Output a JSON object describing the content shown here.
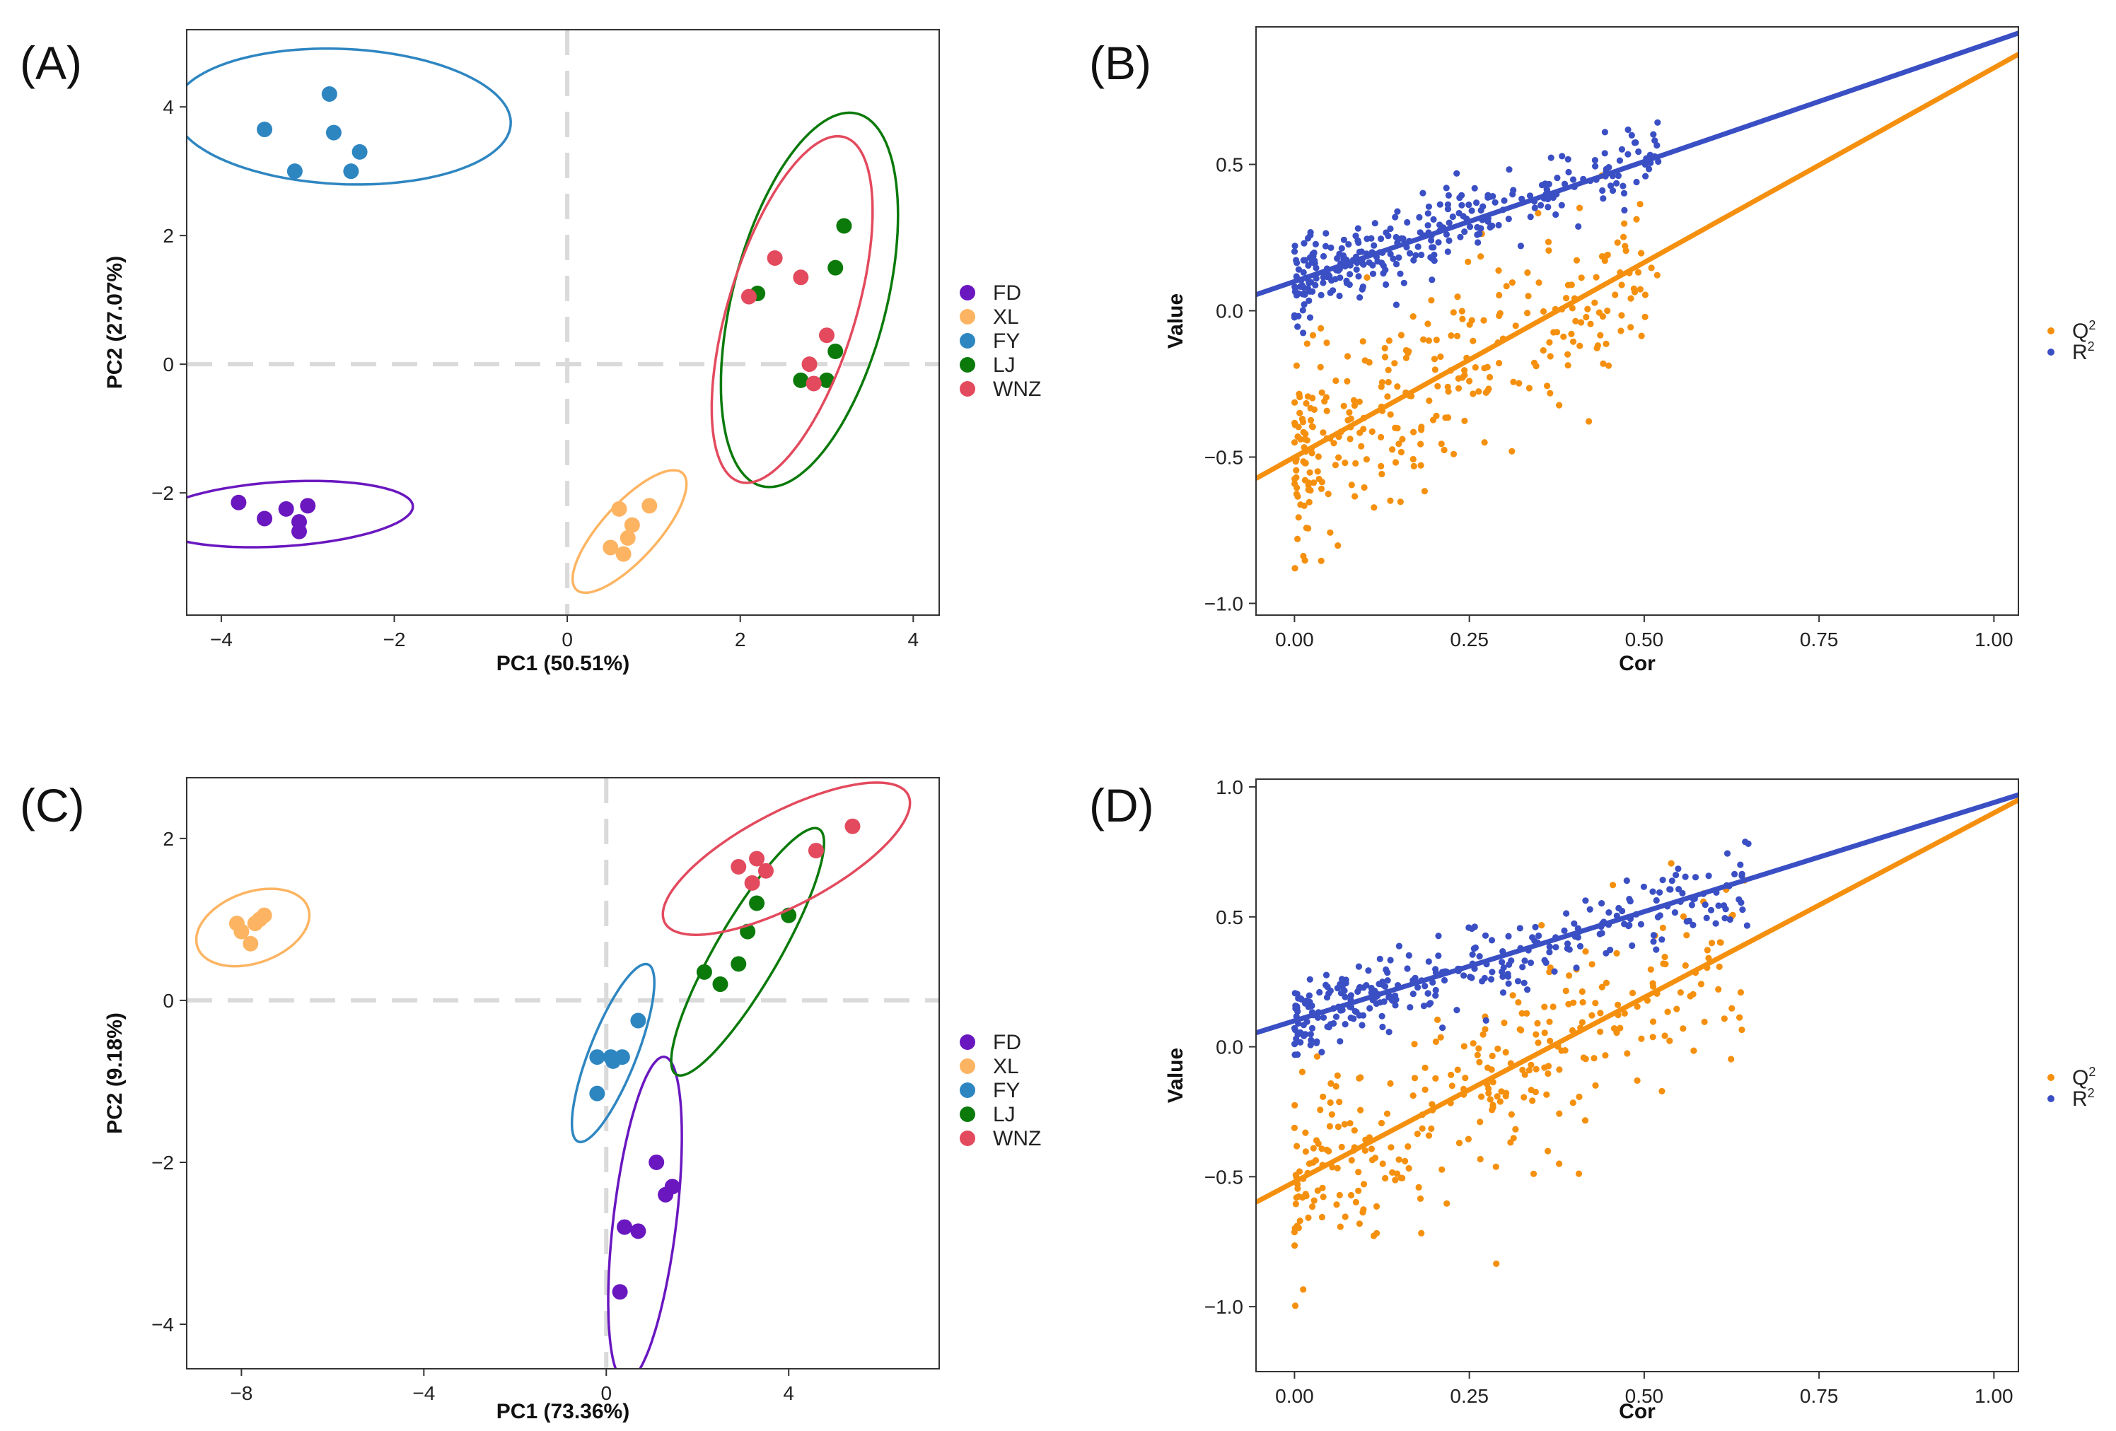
{
  "chart_data": [
    {
      "id": "A",
      "type": "scatter",
      "panel_label": "(A)",
      "title": "",
      "xlabel": "PC1 (50.51%)",
      "ylabel": "PC2 (27.07%)",
      "xlim": [
        -4.4,
        4.3
      ],
      "ylim": [
        -3.9,
        5.2
      ],
      "xticks": [
        -4,
        -2,
        0,
        2,
        4
      ],
      "xtick_labels": [
        "−4",
        "−2",
        "0",
        "2",
        "4"
      ],
      "yticks": [
        -2,
        0,
        2,
        4
      ],
      "ytick_labels": [
        "−2",
        "0",
        "2",
        "4"
      ],
      "zero_lines": true,
      "legend_position": "right",
      "series": [
        {
          "name": "FD",
          "color": "#6A17C0",
          "points": [
            [
              -3.8,
              -2.15
            ],
            [
              -3.5,
              -2.4
            ],
            [
              -3.25,
              -2.25
            ],
            [
              -3.1,
              -2.45
            ],
            [
              -3.1,
              -2.6
            ],
            [
              -3.0,
              -2.2
            ]
          ],
          "ellipse": {
            "cx": -3.3,
            "cy": -2.33,
            "rx": 1.52,
            "ry": 0.5,
            "angle": 5
          }
        },
        {
          "name": "XL",
          "color": "#FDB462",
          "points": [
            [
              0.95,
              -2.2
            ],
            [
              0.6,
              -2.25
            ],
            [
              0.75,
              -2.5
            ],
            [
              0.7,
              -2.7
            ],
            [
              0.5,
              -2.85
            ],
            [
              0.65,
              -2.95
            ]
          ],
          "ellipse": {
            "cx": 0.72,
            "cy": -2.6,
            "rx": 1.1,
            "ry": 0.36,
            "angle": 58
          }
        },
        {
          "name": "FY",
          "color": "#2E86C1",
          "points": [
            [
              -2.75,
              4.2
            ],
            [
              -3.5,
              3.65
            ],
            [
              -2.7,
              3.6
            ],
            [
              -2.4,
              3.3
            ],
            [
              -3.15,
              3.0
            ],
            [
              -2.5,
              3.0
            ]
          ],
          "ellipse": {
            "cx": -2.6,
            "cy": 3.85,
            "rx": 1.95,
            "ry": 1.05,
            "angle": -4
          }
        },
        {
          "name": "LJ",
          "color": "#0B7A0B",
          "points": [
            [
              3.2,
              2.15
            ],
            [
              3.1,
              1.5
            ],
            [
              2.2,
              1.1
            ],
            [
              3.1,
              0.2
            ],
            [
              2.7,
              -0.25
            ],
            [
              3.0,
              -0.25
            ]
          ],
          "ellipse": {
            "cx": 2.8,
            "cy": 1.0,
            "rx": 2.95,
            "ry": 0.9,
            "angle": 80
          }
        },
        {
          "name": "WNZ",
          "color": "#E34A5E",
          "points": [
            [
              2.4,
              1.65
            ],
            [
              2.7,
              1.35
            ],
            [
              2.1,
              1.05
            ],
            [
              3.0,
              0.45
            ],
            [
              2.8,
              0.0
            ],
            [
              2.85,
              -0.3
            ]
          ],
          "ellipse": {
            "cx": 2.6,
            "cy": 0.85,
            "rx": 2.75,
            "ry": 0.75,
            "angle": 78
          }
        }
      ]
    },
    {
      "id": "B",
      "type": "scatter",
      "panel_label": "(B)",
      "title": "",
      "xlabel": "Cor",
      "ylabel": "Value",
      "xlim": [
        -0.055,
        1.035
      ],
      "ylim": [
        -1.04,
        0.97
      ],
      "xticks": [
        0,
        0.25,
        0.5,
        0.75,
        1.0
      ],
      "xtick_labels": [
        "0.00",
        "0.25",
        "0.50",
        "0.75",
        "1.00"
      ],
      "yticks": [
        -1.0,
        -0.5,
        0.0,
        0.5
      ],
      "ytick_labels": [
        "−1.0",
        "−0.5",
        "0.0",
        "0.5"
      ],
      "legend_position": "right",
      "legend": [
        {
          "label": "Q",
          "sup": "2",
          "color": "#F5900F"
        },
        {
          "label": "R",
          "sup": "2",
          "color": "#3A4FC4"
        }
      ],
      "series": [
        {
          "name": "Q2",
          "color": "#F5900F",
          "n_points": 300,
          "x_range": [
            0,
            0.52
          ],
          "fit": {
            "intercept": -0.5,
            "slope": 1.33,
            "x0": -0.055,
            "x1": 1.035
          },
          "scatter_sd": 0.17
        },
        {
          "name": "R2",
          "color": "#3A4FC4",
          "n_points": 300,
          "x_range": [
            0,
            0.52
          ],
          "fit": {
            "intercept": 0.1,
            "slope": 0.82,
            "x0": -0.055,
            "x1": 1.035
          },
          "scatter_sd": 0.065
        }
      ]
    },
    {
      "id": "C",
      "type": "scatter",
      "panel_label": "(C)",
      "title": "",
      "xlabel": "PC1 (73.36%)",
      "ylabel": "PC2 (9.18%)",
      "xlim": [
        -9.2,
        7.3
      ],
      "ylim": [
        -4.55,
        2.75
      ],
      "xticks": [
        -8,
        -4,
        0,
        4
      ],
      "xtick_labels": [
        "−8",
        "−4",
        "0",
        "4"
      ],
      "yticks": [
        -4,
        -2,
        0,
        2
      ],
      "ytick_labels": [
        "−4",
        "−2",
        "0",
        "2"
      ],
      "zero_lines": true,
      "legend_position": "right",
      "series": [
        {
          "name": "FD",
          "color": "#6A17C0",
          "points": [
            [
              1.1,
              -2.0
            ],
            [
              1.45,
              -2.3
            ],
            [
              1.3,
              -2.4
            ],
            [
              0.4,
              -2.8
            ],
            [
              0.7,
              -2.85
            ],
            [
              0.3,
              -3.6
            ]
          ],
          "ellipse": {
            "cx": 0.85,
            "cy": -2.7,
            "rx": 2.05,
            "ry": 0.68,
            "angle": 77
          }
        },
        {
          "name": "XL",
          "color": "#FDB462",
          "points": [
            [
              -7.5,
              1.05
            ],
            [
              -7.6,
              1.0
            ],
            [
              -8.1,
              0.95
            ],
            [
              -8.0,
              0.85
            ],
            [
              -7.7,
              0.95
            ],
            [
              -7.8,
              0.7
            ]
          ],
          "ellipse": {
            "cx": -7.75,
            "cy": 0.9,
            "rx": 1.25,
            "ry": 0.45,
            "angle": 8
          }
        },
        {
          "name": "FY",
          "color": "#2E86C1",
          "points": [
            [
              0.7,
              -0.25
            ],
            [
              -0.2,
              -0.7
            ],
            [
              0.1,
              -0.7
            ],
            [
              0.35,
              -0.7
            ],
            [
              0.15,
              -0.75
            ],
            [
              -0.2,
              -1.15
            ]
          ],
          "ellipse": {
            "cx": 0.15,
            "cy": -0.65,
            "rx": 1.35,
            "ry": 0.45,
            "angle": 52
          }
        },
        {
          "name": "LJ",
          "color": "#0B7A0B",
          "points": [
            [
              3.3,
              1.2
            ],
            [
              4.0,
              1.05
            ],
            [
              3.1,
              0.85
            ],
            [
              2.15,
              0.35
            ],
            [
              2.9,
              0.45
            ],
            [
              2.5,
              0.2
            ]
          ],
          "ellipse": {
            "cx": 3.1,
            "cy": 0.6,
            "rx": 2.2,
            "ry": 0.55,
            "angle": 42
          }
        },
        {
          "name": "WNZ",
          "color": "#E34A5E",
          "points": [
            [
              5.4,
              2.15
            ],
            [
              4.6,
              1.85
            ],
            [
              3.3,
              1.75
            ],
            [
              2.9,
              1.65
            ],
            [
              3.2,
              1.45
            ],
            [
              3.5,
              1.6
            ]
          ],
          "ellipse": {
            "cx": 3.95,
            "cy": 1.75,
            "rx": 2.8,
            "ry": 0.62,
            "angle": 15
          }
        }
      ]
    },
    {
      "id": "D",
      "type": "scatter",
      "panel_label": "(D)",
      "title": "",
      "xlabel": "Cor",
      "ylabel": "Value",
      "xlim": [
        -0.055,
        1.035
      ],
      "ylim": [
        -1.25,
        1.03
      ],
      "xticks": [
        0,
        0.25,
        0.5,
        0.75,
        1.0
      ],
      "xtick_labels": [
        "0.00",
        "0.25",
        "0.50",
        "0.75",
        "1.00"
      ],
      "yticks": [
        -1.0,
        -0.5,
        0.0,
        0.5,
        1.0
      ],
      "ytick_labels": [
        "−1.0",
        "−0.5",
        "0.0",
        "0.5",
        "1.0"
      ],
      "legend_position": "right",
      "legend": [
        {
          "label": "Q",
          "sup": "2",
          "color": "#F5900F"
        },
        {
          "label": "R",
          "sup": "2",
          "color": "#3A4FC4"
        }
      ],
      "series": [
        {
          "name": "Q2",
          "color": "#F5900F",
          "n_points": 300,
          "x_range": [
            0,
            0.65
          ],
          "fit": {
            "intercept": -0.52,
            "slope": 1.42,
            "x0": -0.055,
            "x1": 1.035
          },
          "scatter_sd": 0.2
        },
        {
          "name": "R2",
          "color": "#3A4FC4",
          "n_points": 300,
          "x_range": [
            0,
            0.65
          ],
          "fit": {
            "intercept": 0.1,
            "slope": 0.84,
            "x0": -0.055,
            "x1": 1.035
          },
          "scatter_sd": 0.07
        }
      ]
    }
  ]
}
